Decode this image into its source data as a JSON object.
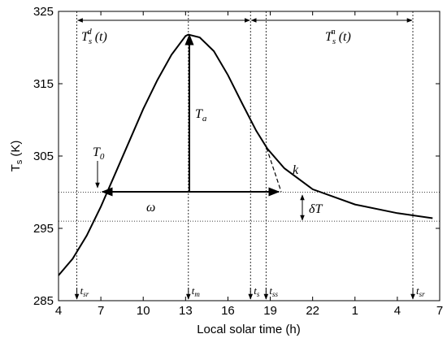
{
  "chart_data": {
    "type": "line",
    "xlabel": "Local solar time (h)",
    "ylabel": {
      "base": "T",
      "sub": "s",
      "rest": " (K)"
    },
    "xlim": [
      4,
      31
    ],
    "ylim": [
      285,
      325
    ],
    "xticks": [
      4,
      7,
      10,
      13,
      16,
      19,
      22,
      {
        "value": 25,
        "label": "1"
      },
      {
        "value": 28,
        "label": "4"
      },
      {
        "value": 31,
        "label": "7"
      }
    ],
    "yticks": [
      285,
      295,
      305,
      315,
      325
    ],
    "series": [
      {
        "color": "#000000",
        "x": [
          4,
          5,
          6,
          7,
          8,
          9,
          10,
          11,
          12,
          13,
          13.2,
          14,
          15,
          16,
          17,
          18,
          18.8,
          20,
          22,
          25,
          28,
          30.5
        ],
        "values": [
          288.5,
          290.8,
          294,
          298,
          302.5,
          307,
          311.5,
          315.5,
          319,
          321.6,
          321.8,
          321.4,
          319.5,
          316.2,
          312.3,
          308.5,
          306,
          303.3,
          300.4,
          298.3,
          297.1,
          296.4
        ]
      }
    ],
    "reference_lines": [
      300,
      296
    ],
    "markers": [
      {
        "x": 5.3,
        "label": {
          "base": "t",
          "sub": "sr"
        }
      },
      {
        "x": 13.2,
        "label": {
          "base": "t",
          "sub": "m"
        }
      },
      {
        "x": 17.6,
        "label": {
          "base": "t",
          "sub": "s"
        }
      },
      {
        "x": 18.7,
        "label": {
          "base": "t",
          "sub": "ss"
        }
      },
      {
        "x": 29.1,
        "label": {
          "base": "t",
          "sub": "sr"
        }
      }
    ],
    "annotations": {
      "day": {
        "base": "T",
        "sub": "s",
        "sup": "d",
        "rest": "(t)"
      },
      "night": {
        "base": "T",
        "sub": "s",
        "sup": "n",
        "rest": "(t)"
      },
      "amplitude": {
        "base": "T",
        "sub": "a"
      },
      "initial": {
        "base": "T",
        "sub": "0"
      },
      "width": "ω",
      "decay": "k",
      "offset": "δT"
    }
  }
}
